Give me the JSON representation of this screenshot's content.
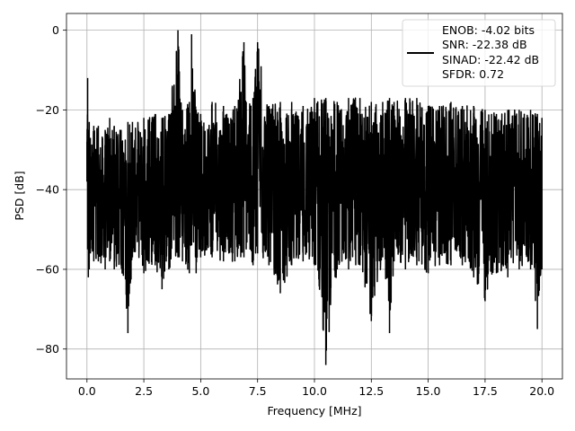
{
  "chart_data": {
    "type": "line",
    "title": "",
    "xlabel": "Frequency [MHz]",
    "ylabel": "PSD [dB]",
    "xlim": [
      -0.9,
      20.9
    ],
    "ylim": [
      -87.5,
      4.2
    ],
    "xticks": [
      0.0,
      2.5,
      5.0,
      7.5,
      10.0,
      12.5,
      15.0,
      17.5,
      20.0
    ],
    "xtick_labels": [
      "0.0",
      "2.5",
      "5.0",
      "7.5",
      "10.0",
      "12.5",
      "15.0",
      "17.5",
      "20.0"
    ],
    "yticks": [
      0,
      -20,
      -40,
      -60,
      -80
    ],
    "ytick_labels": [
      "0",
      "−20",
      "−40",
      "−60",
      "−80"
    ],
    "grid": true,
    "legend_position": "top-right",
    "series": [
      {
        "color": "#000000",
        "x": [
          0.0,
          0.03,
          0.06,
          0.1,
          0.15,
          0.3,
          0.5,
          0.8,
          1.0,
          1.2,
          1.5,
          1.8,
          2.0,
          2.5,
          3.0,
          3.3,
          3.6,
          4.0,
          4.2,
          4.5,
          4.6,
          4.8,
          5.0,
          5.5,
          6.0,
          6.5,
          6.9,
          7.0,
          7.3,
          7.5,
          8.0,
          8.5,
          9.0,
          9.5,
          10.0,
          10.5,
          11.0,
          11.5,
          12.0,
          12.5,
          13.0,
          13.3,
          13.5,
          14.0,
          14.5,
          15.0,
          15.5,
          16.0,
          16.5,
          17.0,
          17.5,
          18.0,
          18.5,
          19.0,
          19.5,
          19.8,
          20.0
        ],
        "upper": [
          -28,
          -12,
          -25,
          -23,
          -27,
          -24,
          -24,
          -25,
          -22,
          -24,
          -25,
          -23,
          -23,
          -22,
          -21,
          -22,
          -21,
          0,
          -20,
          -18,
          -1,
          -20,
          -21,
          -18,
          -19,
          -19,
          -3,
          -18,
          -17,
          -3,
          -19,
          -18,
          -18,
          -19,
          -17,
          -17,
          -18,
          -17,
          -17,
          -18,
          -18,
          -17,
          -18,
          -17,
          -17,
          -19,
          -19,
          -18,
          -19,
          -19,
          -20,
          -21,
          -20,
          -20,
          -20,
          -21,
          -22
        ],
        "lower": [
          -38,
          -55,
          -62,
          -60,
          -56,
          -58,
          -58,
          -60,
          -58,
          -60,
          -59,
          -76,
          -57,
          -61,
          -59,
          -65,
          -60,
          -57,
          -58,
          -61,
          -54,
          -61,
          -57,
          -57,
          -58,
          -58,
          -57,
          -55,
          -59,
          -56,
          -59,
          -66,
          -59,
          -58,
          -59,
          -84,
          -60,
          -60,
          -59,
          -73,
          -57,
          -76,
          -58,
          -60,
          -59,
          -61,
          -59,
          -59,
          -59,
          -62,
          -68,
          -61,
          -62,
          -60,
          -60,
          -75,
          -60
        ]
      }
    ],
    "legend": {
      "lines": [
        "ENOB: -4.02 bits",
        "SNR: -22.38 dB",
        "SINAD: -22.42 dB",
        "SFDR: 0.72"
      ]
    }
  }
}
